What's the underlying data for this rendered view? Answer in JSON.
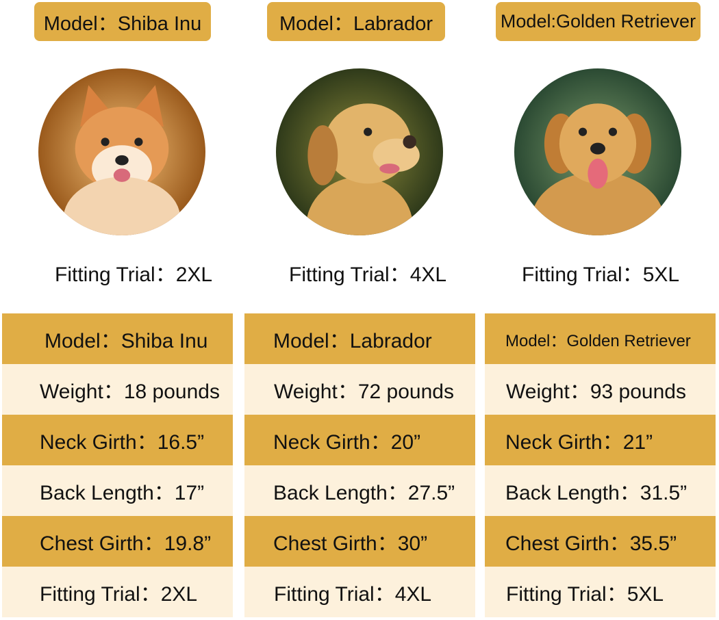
{
  "colors": {
    "gold": "#e0ad45",
    "cream": "#fdf1dc"
  },
  "dogs": [
    {
      "tag": "Model：Shiba Inu",
      "photo": "shiba-inu-photo",
      "fitting": "Fitting Trial：2XL",
      "table": [
        "Model：Shiba Inu",
        "Weight：18 pounds",
        "Neck Girth：16.5”",
        "Back Length：17”",
        "Chest Girth：19.8”",
        "Fitting Trial：2XL"
      ]
    },
    {
      "tag": "Model：Labrador",
      "photo": "labrador-photo",
      "fitting": "Fitting Trial：4XL",
      "table": [
        "Model：Labrador",
        "Weight：72 pounds",
        "Neck Girth：20”",
        "Back Length：27.5”",
        "Chest Girth：30”",
        "Fitting Trial：4XL"
      ]
    },
    {
      "tag": "Model:Golden Retriever",
      "photo": "golden-retriever-photo",
      "fitting": "Fitting Trial：5XL",
      "table": [
        "Model：Golden Retriever",
        "Weight：93 pounds",
        "Neck Girth：21”",
        "Back Length：31.5”",
        "Chest Girth：35.5”",
        "Fitting Trial：5XL"
      ]
    }
  ]
}
